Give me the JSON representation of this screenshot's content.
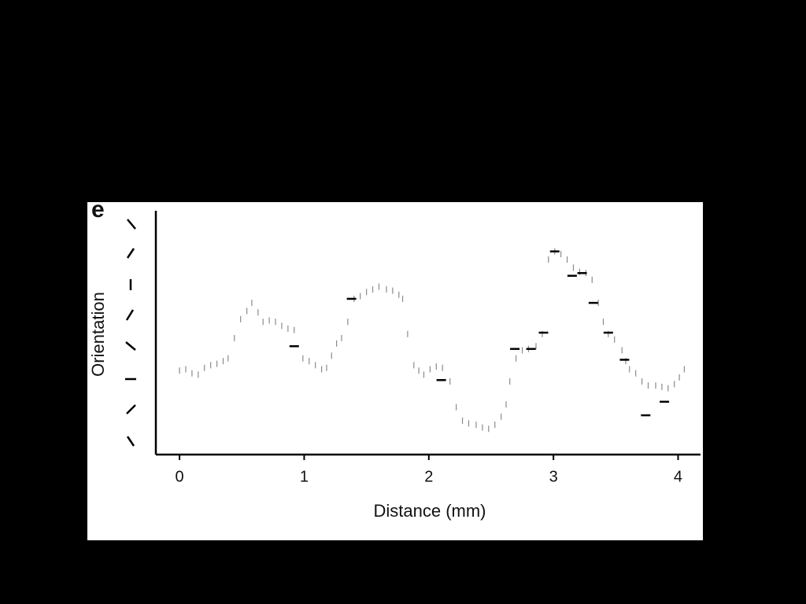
{
  "chart_data": {
    "type": "scatter",
    "panel_label": "e",
    "xlabel": "Distance (mm)",
    "ylabel": "Orientation",
    "xlim": [
      -0.19,
      4.18
    ],
    "xticks": [
      0,
      1,
      2,
      3,
      4
    ],
    "ylim": [
      0,
      180
    ],
    "series": [
      {
        "color": "#8a8a8a",
        "marker": "vline",
        "x": [
          0,
          0.05,
          0.1,
          0.15,
          0.2,
          0.25,
          0.3,
          0.35,
          0.39,
          0.44,
          0.49,
          0.54,
          0.58,
          0.63,
          0.67,
          0.72,
          0.77,
          0.82,
          0.87,
          0.92,
          0.99,
          1.04,
          1.09,
          1.14,
          1.18,
          1.22,
          1.26,
          1.3,
          1.35,
          1.4,
          1.45,
          1.5,
          1.55,
          1.6,
          1.66,
          1.71,
          1.76,
          1.79,
          1.83,
          1.88,
          1.92,
          1.96,
          2.01,
          2.06,
          2.11,
          2.17,
          2.22,
          2.27,
          2.32,
          2.38,
          2.43,
          2.48,
          2.53,
          2.58,
          2.62,
          2.65,
          2.7,
          2.75,
          2.8,
          2.86,
          2.91,
          2.96,
          3.01,
          3.06,
          3.11,
          3.16,
          3.21,
          3.26,
          3.31,
          3.36,
          3.4,
          3.44,
          3.49,
          3.55,
          3.58,
          3.61,
          3.66,
          3.71,
          3.76,
          3.82,
          3.87,
          3.92,
          3.97,
          4.01,
          4.05
        ],
        "values": [
          62,
          63,
          60,
          59,
          64,
          66,
          67,
          69,
          71,
          86,
          100,
          106,
          112,
          105,
          98,
          99,
          98,
          95,
          93,
          92,
          71,
          69,
          66,
          63,
          64,
          73,
          82,
          86,
          98,
          115,
          117,
          120,
          122,
          124,
          122,
          121,
          118,
          115,
          89,
          66,
          62,
          59,
          63,
          65,
          64,
          54,
          35,
          25,
          23,
          22,
          20,
          19,
          22,
          28,
          37,
          54,
          71,
          77,
          78,
          80,
          89,
          144,
          150,
          148,
          144,
          138,
          135,
          134,
          129,
          112,
          98,
          89,
          85,
          77,
          69,
          63,
          60,
          54,
          51,
          51,
          50,
          49,
          52,
          57,
          63
        ]
      },
      {
        "color": "#000000",
        "marker": "hline",
        "x": [
          0.92,
          1.38,
          2.1,
          2.69,
          2.82,
          2.92,
          3.01,
          3.15,
          3.23,
          3.32,
          3.44,
          3.57,
          3.74,
          3.89
        ],
        "values": [
          80,
          115,
          55,
          78,
          78,
          90,
          150,
          132,
          134,
          112,
          90,
          70,
          29,
          39
        ]
      }
    ]
  }
}
